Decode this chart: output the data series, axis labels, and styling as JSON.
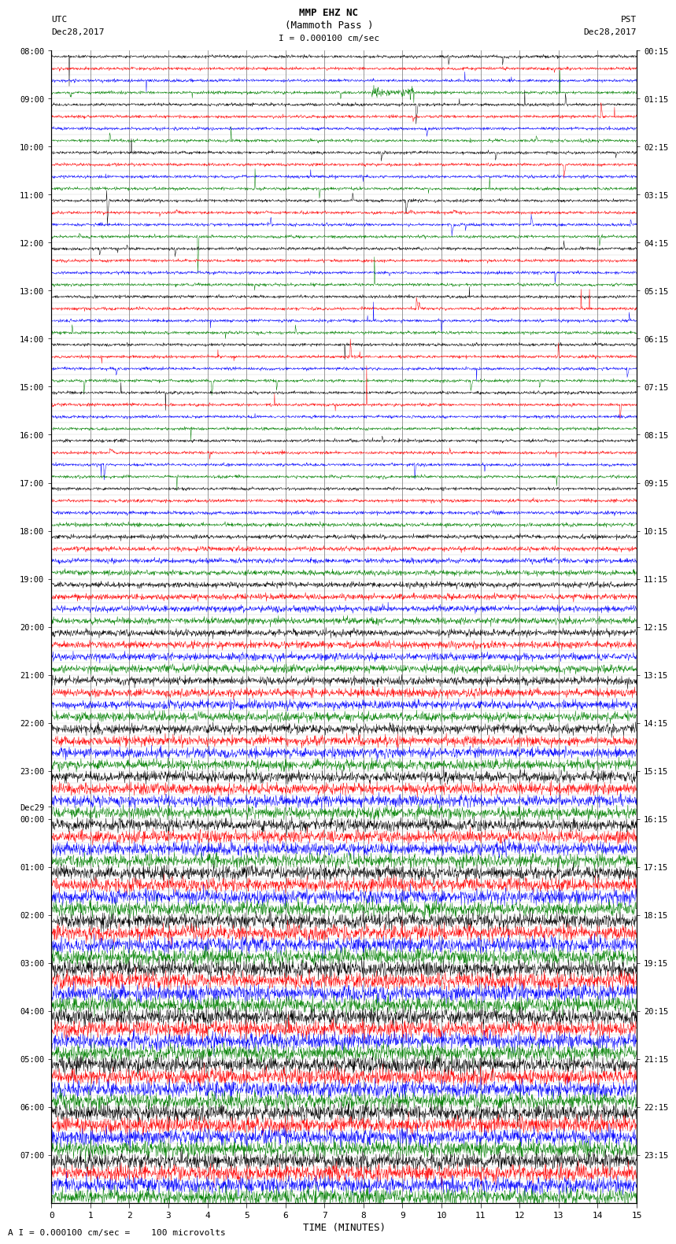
{
  "title_line1": "MMP EHZ NC",
  "title_line2": "(Mammoth Pass )",
  "title_line3": "I = 0.000100 cm/sec",
  "label_left_top": "UTC",
  "label_left_date": "Dec28,2017",
  "label_right_top": "PST",
  "label_right_date": "Dec28,2017",
  "xlabel": "TIME (MINUTES)",
  "bottom_label": "A I = 0.000100 cm/sec =    100 microvolts",
  "utc_labels": [
    [
      "08:00",
      0
    ],
    [
      "09:00",
      4
    ],
    [
      "10:00",
      8
    ],
    [
      "11:00",
      12
    ],
    [
      "12:00",
      16
    ],
    [
      "13:00",
      20
    ],
    [
      "14:00",
      24
    ],
    [
      "15:00",
      28
    ],
    [
      "16:00",
      32
    ],
    [
      "17:00",
      36
    ],
    [
      "18:00",
      40
    ],
    [
      "19:00",
      44
    ],
    [
      "20:00",
      48
    ],
    [
      "21:00",
      52
    ],
    [
      "22:00",
      56
    ],
    [
      "23:00",
      60
    ],
    [
      "Dec29",
      63
    ],
    [
      "00:00",
      64
    ],
    [
      "01:00",
      68
    ],
    [
      "02:00",
      72
    ],
    [
      "03:00",
      76
    ],
    [
      "04:00",
      80
    ],
    [
      "05:00",
      84
    ],
    [
      "06:00",
      88
    ],
    [
      "07:00",
      92
    ]
  ],
  "pst_labels": [
    [
      "00:15",
      0
    ],
    [
      "01:15",
      4
    ],
    [
      "02:15",
      8
    ],
    [
      "03:15",
      12
    ],
    [
      "04:15",
      16
    ],
    [
      "05:15",
      20
    ],
    [
      "06:15",
      24
    ],
    [
      "07:15",
      28
    ],
    [
      "08:15",
      32
    ],
    [
      "09:15",
      36
    ],
    [
      "10:15",
      40
    ],
    [
      "11:15",
      44
    ],
    [
      "12:15",
      48
    ],
    [
      "13:15",
      52
    ],
    [
      "14:15",
      56
    ],
    [
      "15:15",
      60
    ],
    [
      "16:15",
      64
    ],
    [
      "17:15",
      68
    ],
    [
      "18:15",
      72
    ],
    [
      "19:15",
      76
    ],
    [
      "20:15",
      80
    ],
    [
      "21:15",
      84
    ],
    [
      "22:15",
      88
    ],
    [
      "23:15",
      92
    ]
  ],
  "colors": [
    "black",
    "red",
    "blue",
    "green"
  ],
  "n_rows": 96,
  "minutes": 15,
  "samples_per_row": 1800,
  "background_color": "white",
  "grid_color": "#888888",
  "noise_low": 0.06,
  "noise_transition_row": 36,
  "noise_high": 0.32
}
